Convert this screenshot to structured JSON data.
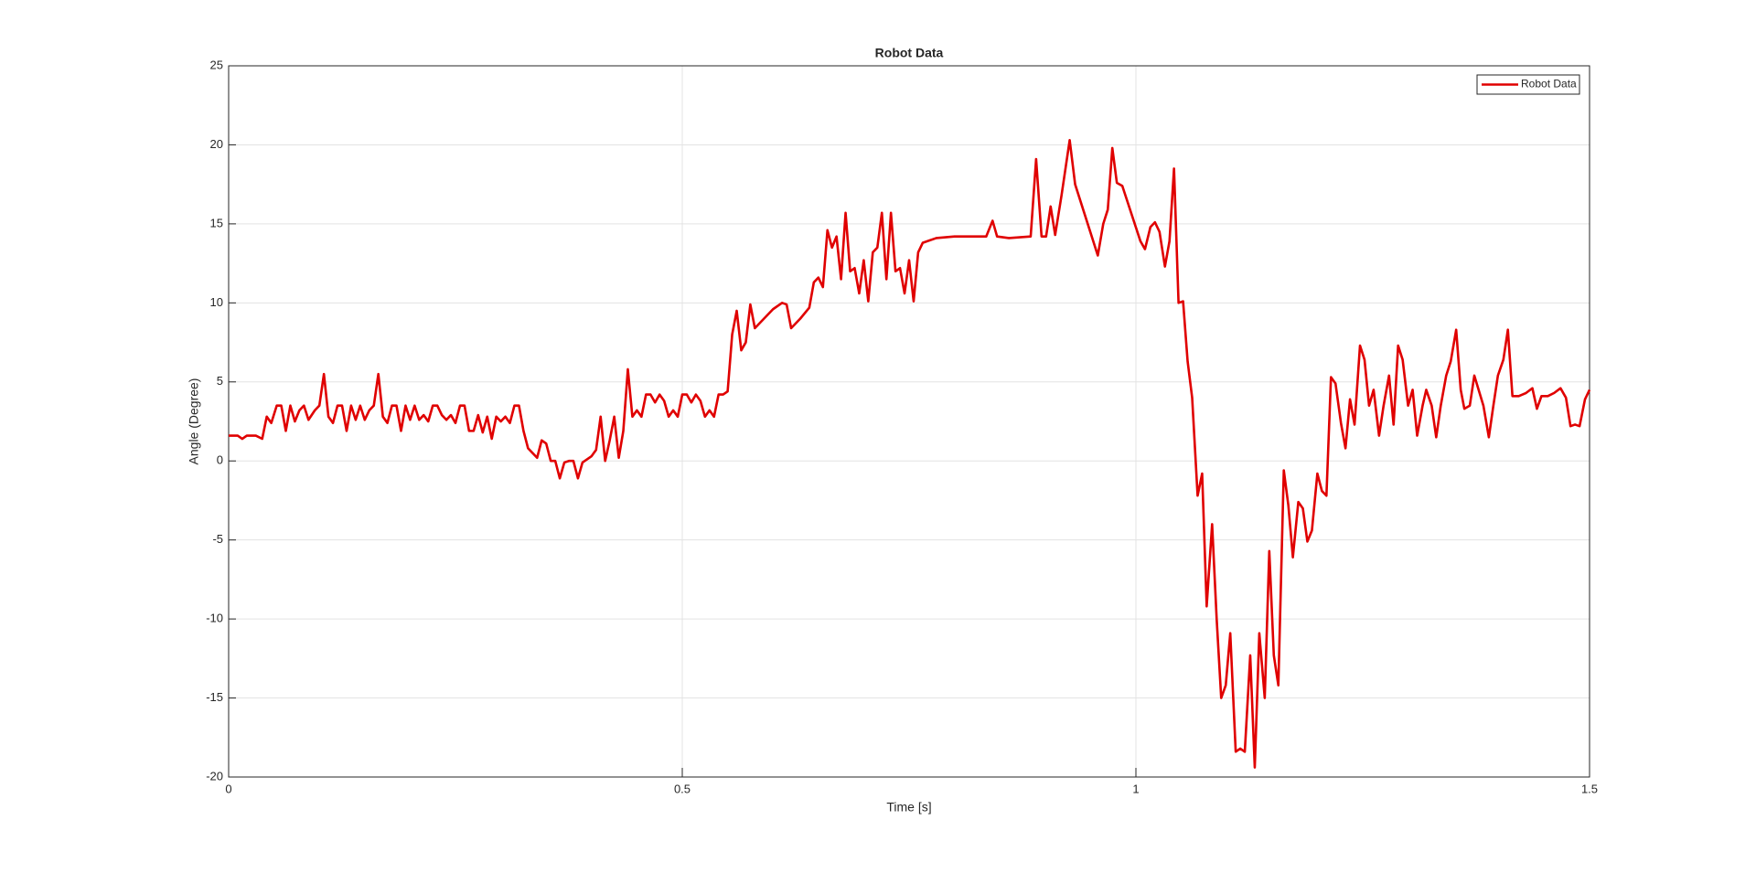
{
  "chart_data": {
    "type": "line",
    "title": "Robot Data",
    "xlabel": "Time [s]",
    "ylabel": "Angle (Degree)",
    "xlim": [
      0,
      1.5
    ],
    "ylim": [
      -20,
      25
    ],
    "xticks": [
      0,
      0.5,
      1,
      1.5
    ],
    "yticks": [
      -20,
      -15,
      -10,
      -5,
      0,
      5,
      10,
      15,
      20,
      25
    ],
    "grid": true,
    "legend": "upper right",
    "x": [
      0,
      0.01,
      0.015,
      0.02,
      0.03,
      0.037,
      0.042,
      0.047,
      0.053,
      0.058,
      0.063,
      0.068,
      0.073,
      0.078,
      0.083,
      0.088,
      0.095,
      0.1,
      0.105,
      0.11,
      0.115,
      0.12,
      0.125,
      0.13,
      0.135,
      0.14,
      0.145,
      0.15,
      0.155,
      0.16,
      0.165,
      0.17,
      0.175,
      0.18,
      0.185,
      0.19,
      0.195,
      0.2,
      0.205,
      0.21,
      0.215,
      0.22,
      0.225,
      0.23,
      0.235,
      0.24,
      0.245,
      0.25,
      0.255,
      0.26,
      0.265,
      0.27,
      0.275,
      0.28,
      0.285,
      0.29,
      0.295,
      0.3,
      0.305,
      0.31,
      0.315,
      0.32,
      0.325,
      0.33,
      0.335,
      0.34,
      0.345,
      0.35,
      0.355,
      0.36,
      0.365,
      0.37,
      0.375,
      0.38,
      0.385,
      0.39,
      0.4,
      0.405,
      0.41,
      0.415,
      0.42,
      0.425,
      0.43,
      0.435,
      0.44,
      0.445,
      0.45,
      0.455,
      0.46,
      0.465,
      0.47,
      0.475,
      0.48,
      0.485,
      0.49,
      0.495,
      0.5,
      0.505,
      0.51,
      0.515,
      0.52,
      0.525,
      0.53,
      0.535,
      0.54,
      0.545,
      0.55,
      0.555,
      0.56,
      0.565,
      0.57,
      0.575,
      0.58,
      0.59,
      0.6,
      0.61,
      0.615,
      0.62,
      0.63,
      0.64,
      0.645,
      0.65,
      0.655,
      0.66,
      0.665,
      0.67,
      0.675,
      0.68,
      0.685,
      0.69,
      0.695,
      0.7,
      0.705,
      0.71,
      0.715,
      0.72,
      0.725,
      0.73,
      0.735,
      0.74,
      0.745,
      0.75,
      0.755,
      0.76,
      0.765,
      0.78,
      0.8,
      0.835,
      0.842,
      0.847,
      0.86,
      0.884,
      0.89,
      0.896,
      0.901,
      0.906,
      0.911,
      0.918,
      0.927,
      0.933,
      0.958,
      0.964,
      0.969,
      0.974,
      0.979,
      0.985,
      1.005,
      1.01,
      1.016,
      1.021,
      1.026,
      1.032,
      1.037,
      1.042,
      1.047,
      1.052,
      1.057,
      1.062,
      1.068,
      1.073,
      1.078,
      1.084,
      1.089,
      1.094,
      1.099,
      1.104,
      1.11,
      1.115,
      1.12,
      1.126,
      1.131,
      1.136,
      1.142,
      1.147,
      1.152,
      1.157,
      1.163,
      1.168,
      1.173,
      1.179,
      1.184,
      1.189,
      1.194,
      1.2,
      1.205,
      1.21,
      1.215,
      1.22,
      1.226,
      1.231,
      1.236,
      1.241,
      1.247,
      1.252,
      1.257,
      1.262,
      1.268,
      1.273,
      1.279,
      1.284,
      1.289,
      1.294,
      1.3,
      1.305,
      1.31,
      1.316,
      1.32,
      1.326,
      1.331,
      1.336,
      1.342,
      1.347,
      1.353,
      1.358,
      1.362,
      1.368,
      1.373,
      1.383,
      1.389,
      1.394,
      1.399,
      1.405,
      1.41,
      1.415,
      1.422,
      1.43,
      1.437,
      1.442,
      1.447,
      1.454,
      1.461,
      1.468,
      1.474,
      1.479,
      1.484,
      1.489,
      1.495,
      1.5
    ],
    "series": [
      {
        "name": "Robot Data",
        "color": "#e00000",
        "values": [
          1.6,
          1.6,
          1.4,
          1.6,
          1.6,
          1.4,
          2.8,
          2.4,
          3.5,
          3.5,
          1.9,
          3.5,
          2.5,
          3.2,
          3.5,
          2.6,
          3.2,
          3.5,
          5.5,
          2.8,
          2.4,
          3.5,
          3.5,
          1.9,
          3.5,
          2.6,
          3.5,
          2.6,
          3.2,
          3.5,
          5.5,
          2.8,
          2.4,
          3.5,
          3.5,
          1.9,
          3.5,
          2.6,
          3.5,
          2.6,
          2.9,
          2.5,
          3.5,
          3.5,
          2.9,
          2.6,
          2.9,
          2.4,
          3.5,
          3.5,
          1.9,
          1.9,
          2.9,
          1.8,
          2.8,
          1.4,
          2.8,
          2.5,
          2.8,
          2.4,
          3.5,
          3.5,
          1.9,
          0.8,
          0.5,
          0.2,
          1.3,
          1.1,
          0,
          0,
          -1.1,
          -0.1,
          0,
          0,
          -1.1,
          -0.1,
          0.3,
          0.7,
          2.8,
          0,
          1.3,
          2.8,
          0.2,
          1.9,
          5.8,
          2.8,
          3.2,
          2.8,
          4.2,
          4.2,
          3.7,
          4.2,
          3.8,
          2.8,
          3.2,
          2.8,
          4.2,
          4.2,
          3.7,
          4.2,
          3.8,
          2.8,
          3.2,
          2.8,
          4.2,
          4.2,
          4.4,
          8,
          9.5,
          7,
          7.5,
          9.9,
          8.4,
          9,
          9.6,
          10,
          9.9,
          8.4,
          9,
          9.7,
          11.3,
          11.6,
          11,
          14.6,
          13.5,
          14.2,
          11.5,
          15.7,
          12,
          12.2,
          10.6,
          12.7,
          10.1,
          13.2,
          13.5,
          15.7,
          11.5,
          15.7,
          12,
          12.2,
          10.6,
          12.7,
          10.1,
          13.2,
          13.8,
          14.1,
          14.2,
          14.2,
          15.2,
          14.2,
          14.1,
          14.2,
          19.1,
          14.2,
          14.2,
          16.1,
          14.3,
          16.8,
          20.3,
          17.5,
          13,
          15,
          15.9,
          19.8,
          17.6,
          17.4,
          13.9,
          13.4,
          14.8,
          15.1,
          14.5,
          12.3,
          13.9,
          18.5,
          10,
          10.1,
          6.3,
          4,
          -2.2,
          -0.8,
          -9.2,
          -4,
          -10,
          -15,
          -14.2,
          -10.9,
          -18.4,
          -18.2,
          -18.4,
          -12.3,
          -19.4,
          -10.9,
          -15,
          -5.7,
          -12.3,
          -14.2,
          -0.6,
          -2.8,
          -6.1,
          -2.6,
          -3,
          -5.1,
          -4.4,
          -0.8,
          -1.9,
          -2.2,
          5.3,
          4.9,
          2.4,
          0.8,
          3.9,
          2.3,
          7.3,
          6.4,
          3.5,
          4.5,
          1.6,
          3.5,
          5.4,
          2.3,
          7.3,
          6.4,
          3.5,
          4.5,
          1.6,
          3.5,
          4.5,
          3.5,
          1.5,
          3.5,
          5.4,
          6.3,
          8.3,
          4.5,
          3.3,
          3.5,
          5.4,
          3.5,
          1.5,
          3.5,
          5.4,
          6.4,
          8.3,
          4.1,
          4.1,
          4.3,
          4.6,
          3.3,
          4.1,
          4.1,
          4.3,
          4.6,
          4.0,
          2.2,
          2.3,
          2.2,
          3.9,
          4.5
        ]
      }
    ]
  }
}
